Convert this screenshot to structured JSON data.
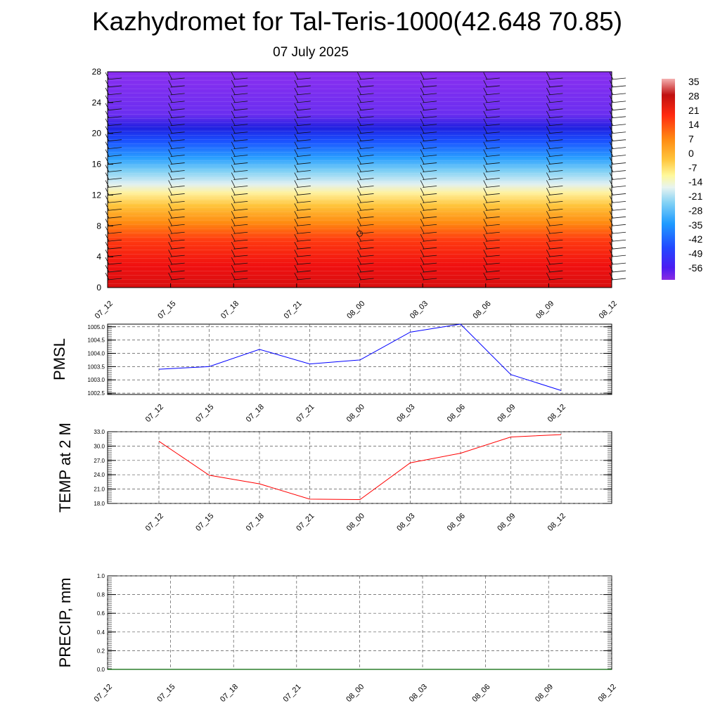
{
  "title": "Kazhydromet for Tal-Teris-1000(42.648 70.85)",
  "subtitle": "07 July 2025",
  "chart_data": [
    {
      "type": "heatmap",
      "description_of_field": "temperature cross-section with wind barbs",
      "x_ticks": [
        "07_12",
        "07_15",
        "07_18",
        "07_21",
        "08_00",
        "08_03",
        "08_06",
        "08_09",
        "08_12"
      ],
      "y_ticks": [
        "0",
        "4",
        "8",
        "12",
        "16",
        "20",
        "24",
        "28"
      ],
      "ylim": [
        0,
        28
      ],
      "colorbar_labels": [
        "35",
        "28",
        "21",
        "14",
        "7",
        "0",
        "-7",
        "-14",
        "-21",
        "-28",
        "-35",
        "-42",
        "-49",
        "-56"
      ],
      "colorbar_range": [
        -60,
        38
      ],
      "bands": [
        {
          "from": 0,
          "to": 2,
          "value": 30
        },
        {
          "from": 2,
          "to": 5,
          "value": 24
        },
        {
          "from": 5,
          "to": 8,
          "value": 14
        },
        {
          "from": 8,
          "to": 11,
          "value": 5
        },
        {
          "from": 11,
          "to": 13,
          "value": -4
        },
        {
          "from": 13,
          "to": 14.5,
          "value": -18
        },
        {
          "from": 14.5,
          "to": 17.5,
          "value": -30
        },
        {
          "from": 17.5,
          "to": 19.5,
          "value": -42
        },
        {
          "from": 19.5,
          "to": 21.5,
          "value": -52
        },
        {
          "from": 21.5,
          "to": 28,
          "value": -57
        }
      ]
    },
    {
      "type": "line",
      "ylabel": "PMSL",
      "x": [
        "07_12",
        "07_15",
        "07_18",
        "07_21",
        "08_00",
        "08_03",
        "08_06",
        "08_09",
        "08_12"
      ],
      "y_ticks": [
        "1005.0",
        "1004.5",
        "1004.0",
        "1003.5",
        "1003.0",
        "1002.5"
      ],
      "ylim": [
        1002.45,
        1005.1
      ],
      "values": [
        1003.4,
        1003.5,
        1004.15,
        1003.6,
        1003.75,
        1004.8,
        1005.1,
        1003.2,
        1002.6
      ],
      "color": "#0000ff"
    },
    {
      "type": "line",
      "ylabel": "TEMP at 2 M",
      "x": [
        "07_12",
        "07_15",
        "07_18",
        "07_21",
        "08_00",
        "08_03",
        "08_06",
        "08_09",
        "08_12"
      ],
      "y_ticks": [
        "33.0",
        "30.0",
        "27.0",
        "24.0",
        "21.0",
        "18.0"
      ],
      "ylim": [
        18,
        33
      ],
      "values": [
        31.0,
        23.9,
        22.1,
        18.9,
        18.8,
        26.5,
        28.5,
        31.9,
        32.4
      ],
      "color": "#ff0000"
    },
    {
      "type": "line",
      "ylabel": "PRECIP, mm",
      "x": [
        "07_12",
        "07_15",
        "07_18",
        "07_21",
        "08_00",
        "08_03",
        "08_06",
        "08_09",
        "08_12"
      ],
      "y_ticks": [
        "1.0",
        "0.8",
        "0.6",
        "0.4",
        "0.2",
        "0.0"
      ],
      "ylim": [
        0,
        1
      ],
      "values": [
        0,
        0,
        0,
        0,
        0,
        0,
        0,
        0,
        0
      ],
      "color": "#006400"
    }
  ]
}
